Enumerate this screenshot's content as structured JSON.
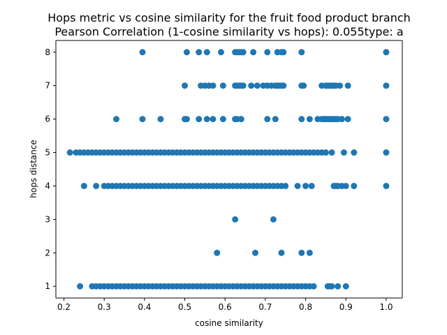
{
  "chart_data": {
    "type": "scatter",
    "title_line1": "Hops metric vs cosine similarity for the fruit food product branch",
    "title_line2": "Pearson Correlation (1-cosine similarity vs hops): 0.055type: a",
    "xlabel": "cosine similarity",
    "ylabel": "hops distance",
    "xlim": [
      0.18,
      1.04
    ],
    "ylim": [
      0.65,
      8.35
    ],
    "xticks": [
      0.2,
      0.3,
      0.4,
      0.5,
      0.6,
      0.7,
      0.8,
      0.9,
      1.0
    ],
    "xtick_labels": [
      "0.2",
      "0.3",
      "0.4",
      "0.5",
      "0.6",
      "0.7",
      "0.8",
      "0.9",
      "1.0"
    ],
    "yticks": [
      1,
      2,
      3,
      4,
      5,
      6,
      7,
      8
    ],
    "ytick_labels": [
      "1",
      "2",
      "3",
      "4",
      "5",
      "6",
      "7",
      "8"
    ],
    "grid": false,
    "legend": "none",
    "color": "#1f77b4",
    "series": [
      {
        "points": [
          {
            "y": 8,
            "x": [
              0.395,
              0.505,
              0.535,
              0.555,
              0.59,
              0.625,
              0.63,
              0.635,
              0.64,
              0.645,
              0.67,
              0.705,
              0.73,
              0.74,
              0.745,
              0.79,
              1.0
            ]
          },
          {
            "y": 7,
            "x": [
              0.5,
              0.54,
              0.55,
              0.56,
              0.57,
              0.595,
              0.625,
              0.63,
              0.635,
              0.64,
              0.645,
              0.665,
              0.68,
              0.695,
              0.705,
              0.715,
              0.725,
              0.73,
              0.735,
              0.74,
              0.745,
              0.79,
              0.795,
              0.84,
              0.85,
              0.855,
              0.86,
              0.865,
              0.87,
              0.875,
              0.885,
              0.905,
              1.0
            ]
          },
          {
            "y": 6,
            "x": [
              0.33,
              0.395,
              0.44,
              0.5,
              0.505,
              0.535,
              0.555,
              0.57,
              0.595,
              0.625,
              0.63,
              0.64,
              0.705,
              0.725,
              0.79,
              0.81,
              0.83,
              0.84,
              0.845,
              0.85,
              0.855,
              0.86,
              0.865,
              0.87,
              0.875,
              0.88,
              0.89,
              0.905,
              1.0
            ]
          },
          {
            "y": 5,
            "x": [
              0.215,
              0.23,
              0.24,
              0.25,
              0.26,
              0.27,
              0.28,
              0.29,
              0.3,
              0.31,
              0.32,
              0.33,
              0.34,
              0.35,
              0.36,
              0.37,
              0.38,
              0.39,
              0.4,
              0.41,
              0.42,
              0.43,
              0.44,
              0.45,
              0.46,
              0.47,
              0.48,
              0.49,
              0.5,
              0.51,
              0.52,
              0.53,
              0.54,
              0.55,
              0.56,
              0.57,
              0.58,
              0.59,
              0.6,
              0.61,
              0.62,
              0.63,
              0.64,
              0.65,
              0.66,
              0.67,
              0.68,
              0.69,
              0.7,
              0.71,
              0.72,
              0.73,
              0.74,
              0.75,
              0.76,
              0.77,
              0.78,
              0.79,
              0.8,
              0.81,
              0.82,
              0.83,
              0.84,
              0.85,
              0.865,
              0.895,
              0.92,
              1.0
            ]
          },
          {
            "y": 4,
            "x": [
              0.25,
              0.28,
              0.3,
              0.31,
              0.32,
              0.33,
              0.34,
              0.35,
              0.36,
              0.37,
              0.38,
              0.39,
              0.4,
              0.41,
              0.42,
              0.43,
              0.44,
              0.45,
              0.46,
              0.47,
              0.48,
              0.49,
              0.5,
              0.51,
              0.52,
              0.53,
              0.54,
              0.55,
              0.56,
              0.57,
              0.58,
              0.59,
              0.6,
              0.61,
              0.62,
              0.63,
              0.64,
              0.65,
              0.66,
              0.67,
              0.68,
              0.69,
              0.7,
              0.71,
              0.72,
              0.73,
              0.74,
              0.75,
              0.78,
              0.8,
              0.815,
              0.87,
              0.875,
              0.88,
              0.89,
              0.9,
              0.92,
              1.0
            ]
          },
          {
            "y": 3,
            "x": [
              0.625,
              0.72
            ]
          },
          {
            "y": 2,
            "x": [
              0.58,
              0.675,
              0.74,
              0.79,
              0.81
            ]
          },
          {
            "y": 1,
            "x": [
              0.24,
              0.27,
              0.28,
              0.29,
              0.3,
              0.31,
              0.32,
              0.33,
              0.34,
              0.35,
              0.36,
              0.37,
              0.38,
              0.39,
              0.4,
              0.41,
              0.42,
              0.43,
              0.44,
              0.45,
              0.46,
              0.47,
              0.48,
              0.49,
              0.5,
              0.51,
              0.52,
              0.53,
              0.54,
              0.55,
              0.56,
              0.57,
              0.58,
              0.59,
              0.6,
              0.61,
              0.62,
              0.63,
              0.64,
              0.65,
              0.66,
              0.67,
              0.68,
              0.69,
              0.7,
              0.71,
              0.72,
              0.73,
              0.74,
              0.75,
              0.76,
              0.77,
              0.78,
              0.79,
              0.8,
              0.81,
              0.82,
              0.855,
              0.86,
              0.865,
              0.88,
              0.9
            ]
          }
        ]
      }
    ]
  }
}
